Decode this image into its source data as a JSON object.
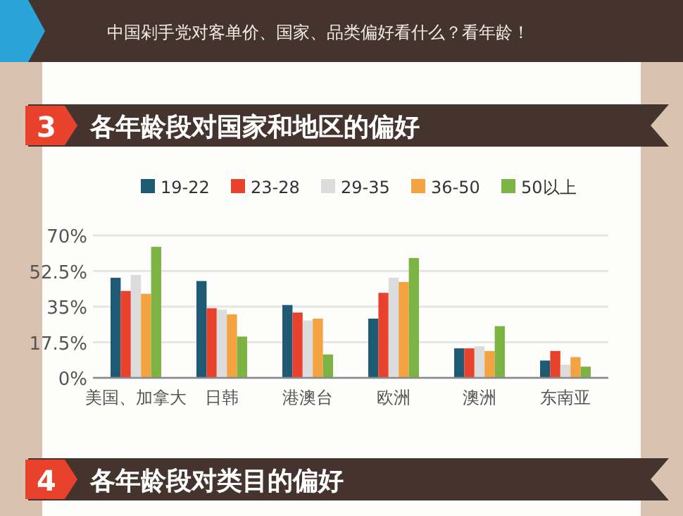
{
  "chart_data": {
    "type": "bar",
    "title": "各年龄段对国家和地区的偏好",
    "annotations": [
      "中国剁手党对客单价、国家、品类偏好看什么？看年龄！",
      "3",
      "4",
      "各年龄段对类目的偏好"
    ],
    "categories": [
      "美国、加拿大",
      "日韩",
      "港澳台",
      "欧洲",
      "澳洲",
      "东南亚"
    ],
    "series": [
      {
        "name": "19-22",
        "color": "#1f5a75",
        "values": [
          49.2,
          47.6,
          35.8,
          29.1,
          14.5,
          8.5
        ]
      },
      {
        "name": "23-28",
        "color": "#e8412c",
        "values": [
          42.7,
          34.2,
          32.1,
          41.8,
          14.5,
          13.2
        ]
      },
      {
        "name": "29-35",
        "color": "#dcdcdc",
        "values": [
          50.6,
          33.5,
          28.2,
          49.2,
          15.5,
          6.5
        ]
      },
      {
        "name": "36-50",
        "color": "#f4a343",
        "values": [
          41.3,
          31.2,
          29.1,
          47.1,
          13.2,
          10.2
        ]
      },
      {
        "name": "50以上",
        "color": "#7cb342",
        "values": [
          64.4,
          20.3,
          11.5,
          58.9,
          25.4,
          5.5
        ]
      }
    ],
    "ylim": [
      0,
      70
    ],
    "yticks": [
      {
        "value": 0,
        "label": "0%"
      },
      {
        "value": 17.5,
        "label": "17.5%"
      },
      {
        "value": 35,
        "label": "35%"
      },
      {
        "value": 52.5,
        "label": "52.5%"
      },
      {
        "value": 70,
        "label": "70%"
      }
    ],
    "grid": "y",
    "legend": "top"
  }
}
